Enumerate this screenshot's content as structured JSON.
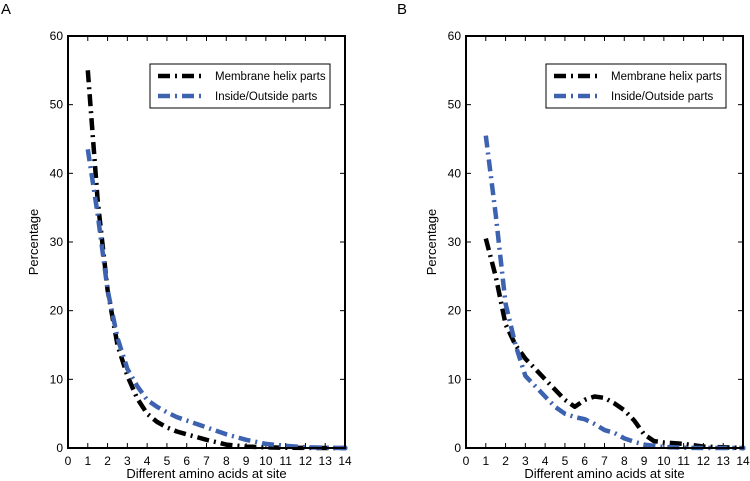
{
  "chart_data": [
    {
      "panel": "A",
      "type": "line",
      "title": "",
      "xlabel": "Different amino acids at site",
      "ylabel": "Percentage",
      "xlim": [
        0,
        14
      ],
      "ylim": [
        0,
        60
      ],
      "xticks": [
        0,
        1,
        2,
        3,
        4,
        5,
        6,
        7,
        8,
        9,
        10,
        11,
        12,
        13,
        14
      ],
      "yticks": [
        0,
        10,
        20,
        30,
        40,
        50,
        60
      ],
      "legend_position": "top-right",
      "series": [
        {
          "name": "Membrane helix parts",
          "color": "#000000",
          "style": "dash-dot",
          "x": [
            1,
            1.5,
            2,
            2.5,
            3,
            3.5,
            4,
            4.5,
            5,
            5.5,
            6,
            7,
            8,
            9,
            10,
            11,
            12,
            13,
            14
          ],
          "values": [
            55,
            36,
            23,
            15,
            10.5,
            7.2,
            5,
            3.8,
            3,
            2.4,
            2,
            1.2,
            0.5,
            0.2,
            0.1,
            0.05,
            0.02,
            0,
            0
          ]
        },
        {
          "name": "Inside/Outside parts",
          "color": "#3d62b0",
          "style": "dash-dot",
          "x": [
            1,
            1.5,
            2,
            2.5,
            3,
            3.5,
            4,
            4.5,
            5,
            5.5,
            6,
            7,
            8,
            9,
            10,
            11,
            12,
            13,
            14
          ],
          "values": [
            43.5,
            34,
            23,
            16,
            11.5,
            9,
            7,
            6,
            5.2,
            4.5,
            4,
            3,
            2,
            1.2,
            0.6,
            0.3,
            0.1,
            0.05,
            0
          ]
        }
      ]
    },
    {
      "panel": "B",
      "type": "line",
      "title": "",
      "xlabel": "Different amino acids at site",
      "ylabel": "Percentage",
      "xlim": [
        0,
        14
      ],
      "ylim": [
        0,
        60
      ],
      "xticks": [
        0,
        1,
        2,
        3,
        4,
        5,
        6,
        7,
        8,
        9,
        10,
        11,
        12,
        13,
        14
      ],
      "yticks": [
        0,
        10,
        20,
        30,
        40,
        50,
        60
      ],
      "legend_position": "top-right",
      "series": [
        {
          "name": "Membrane helix parts",
          "color": "#000000",
          "style": "dash-dot",
          "x": [
            1,
            1.5,
            2,
            2.5,
            3,
            3.5,
            4,
            4.5,
            5,
            5.5,
            6,
            6.5,
            7,
            7.5,
            8,
            8.5,
            9,
            9.5,
            10,
            11,
            12,
            13,
            14
          ],
          "values": [
            30.5,
            25,
            18,
            15,
            13,
            11.5,
            10,
            8.5,
            7,
            6,
            7,
            7.5,
            7.3,
            6.5,
            5.5,
            4,
            2,
            1,
            0.8,
            0.6,
            0.2,
            0.1,
            0
          ]
        },
        {
          "name": "Inside/Outside parts",
          "color": "#3d62b0",
          "style": "dash-dot",
          "x": [
            1,
            1.5,
            2,
            2.5,
            3,
            3.5,
            4,
            4.5,
            5,
            5.5,
            6,
            6.5,
            7,
            7.5,
            8,
            8.5,
            9,
            9.5,
            10,
            11,
            12,
            13,
            14
          ],
          "values": [
            45.5,
            34,
            21,
            15,
            10.5,
            9,
            7.5,
            6,
            5,
            4.5,
            4.2,
            3.5,
            2.6,
            2.2,
            1.4,
            0.9,
            0.5,
            0.3,
            0.15,
            0.05,
            0,
            0,
            0
          ]
        }
      ]
    }
  ]
}
